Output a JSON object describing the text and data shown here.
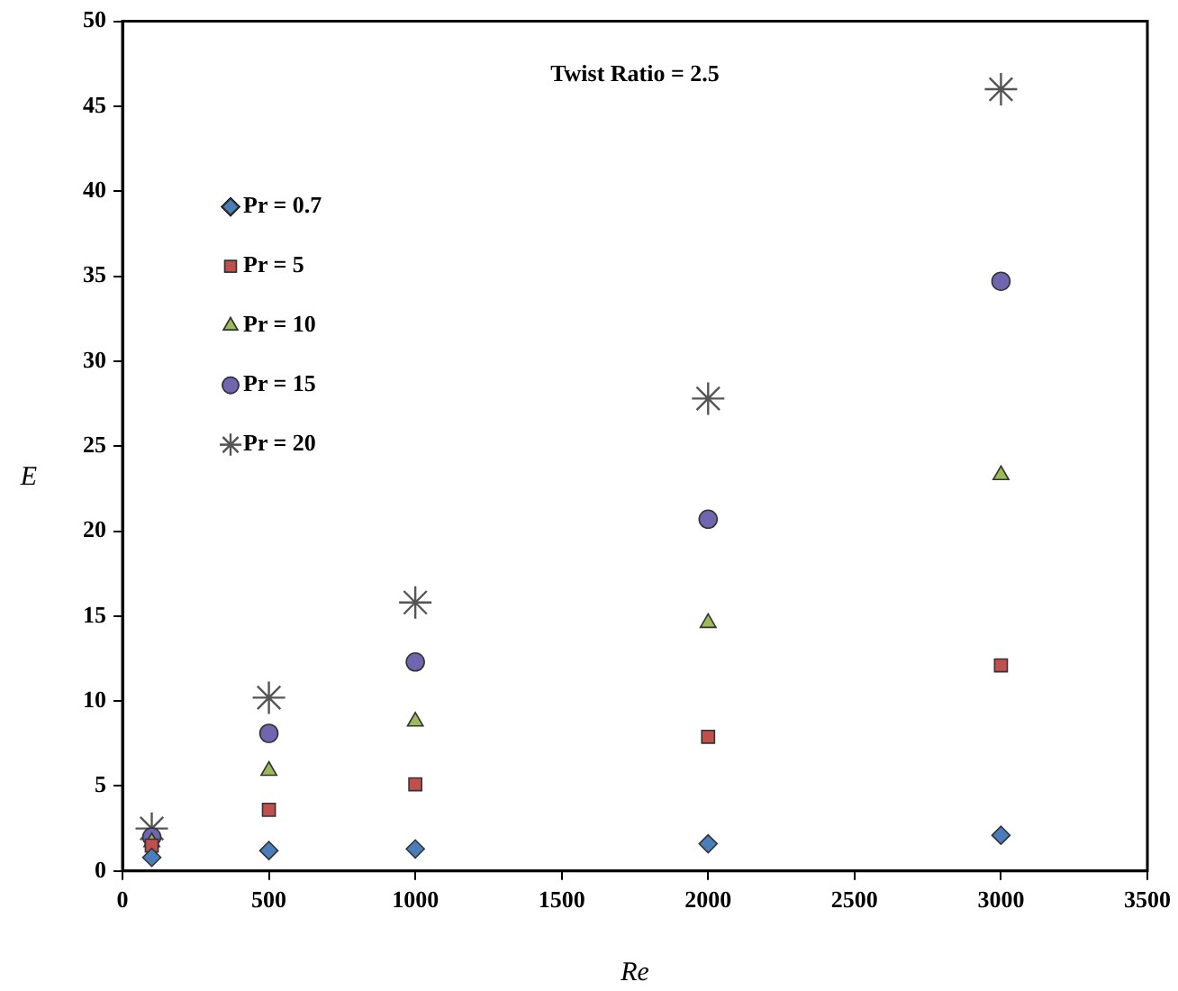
{
  "chart_data": {
    "type": "scatter",
    "xlabel": "Re",
    "ylabel": "E",
    "annotations": [
      "Twist Ratio = 2.5"
    ],
    "x": [
      100,
      500,
      1000,
      2000,
      3000
    ],
    "series": [
      {
        "name": "Pr = 0.7",
        "color": "#4a7ebb",
        "marker": "diamond",
        "values": [
          0.8,
          1.2,
          1.3,
          1.6,
          2.1
        ]
      },
      {
        "name": "Pr = 5",
        "color": "#c0504d",
        "marker": "square",
        "values": [
          1.5,
          3.6,
          5.1,
          7.9,
          12.1
        ]
      },
      {
        "name": "Pr = 10",
        "color": "#9bbb59",
        "marker": "triangle",
        "values": [
          1.7,
          5.9,
          8.8,
          14.6,
          23.3
        ]
      },
      {
        "name": "Pr = 15",
        "color": "#7066b0",
        "marker": "circle",
        "values": [
          2.0,
          8.1,
          12.3,
          20.7,
          34.7
        ]
      },
      {
        "name": "Pr = 20",
        "color": "#555555",
        "marker": "cross",
        "values": [
          2.5,
          10.2,
          15.8,
          27.8,
          46.0
        ]
      }
    ],
    "xlim": [
      0,
      3500
    ],
    "xticks": [
      0,
      500,
      1000,
      1500,
      2000,
      2500,
      3000,
      3500
    ],
    "ylim": [
      0,
      50
    ],
    "yticks": [
      0,
      5,
      10,
      15,
      20,
      25,
      30,
      35,
      40,
      45,
      50
    ],
    "grid": false,
    "legend": "top left"
  }
}
